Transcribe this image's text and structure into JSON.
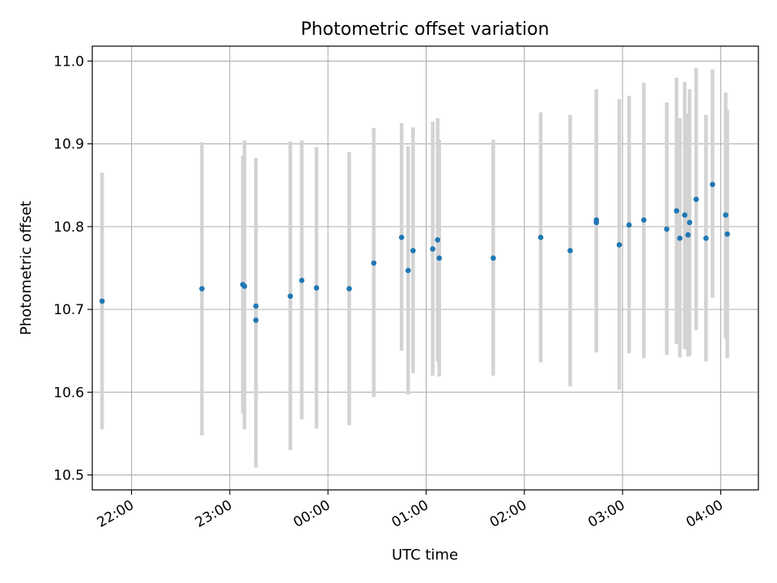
{
  "chart_data": {
    "type": "scatter",
    "title": "Photometric offset variation",
    "xlabel": "UTC time",
    "ylabel": "Photometric offset",
    "x_axis": {
      "type": "time",
      "min": "21:36",
      "max": "04:23"
    },
    "ylim": [
      10.482,
      11.018
    ],
    "grid": true,
    "colors": {
      "points": "#1f77b4",
      "errorbars": "#d3d3d3",
      "grid": "#b0b0b0"
    },
    "x_ticks": [
      "22:00",
      "23:00",
      "00:00",
      "01:00",
      "02:00",
      "03:00",
      "04:00"
    ],
    "y_ticks": [
      "10.5",
      "10.6",
      "10.7",
      "10.8",
      "10.9",
      "11.0"
    ],
    "points": [
      {
        "x": "21:42",
        "y": 10.71,
        "yerr_low": 10.555,
        "yerr_high": 10.865
      },
      {
        "x": "22:43",
        "y": 10.725,
        "yerr_low": 10.548,
        "yerr_high": 10.902
      },
      {
        "x": "23:08",
        "y": 10.73,
        "yerr_low": 10.574,
        "yerr_high": 10.886
      },
      {
        "x": "23:09",
        "y": 10.728,
        "yerr_low": 10.555,
        "yerr_high": 10.904
      },
      {
        "x": "23:16",
        "y": 10.687,
        "yerr_low": 10.509,
        "yerr_high": 10.865
      },
      {
        "x": "23:16",
        "y": 10.704,
        "yerr_low": 10.525,
        "yerr_high": 10.883
      },
      {
        "x": "23:37",
        "y": 10.716,
        "yerr_low": 10.53,
        "yerr_high": 10.903
      },
      {
        "x": "23:44",
        "y": 10.735,
        "yerr_low": 10.567,
        "yerr_high": 10.904
      },
      {
        "x": "23:53",
        "y": 10.726,
        "yerr_low": 10.556,
        "yerr_high": 10.896
      },
      {
        "x": "00:13",
        "y": 10.725,
        "yerr_low": 10.56,
        "yerr_high": 10.89
      },
      {
        "x": "00:28",
        "y": 10.756,
        "yerr_low": 10.594,
        "yerr_high": 10.919
      },
      {
        "x": "00:45",
        "y": 10.787,
        "yerr_low": 10.65,
        "yerr_high": 10.925
      },
      {
        "x": "00:49",
        "y": 10.747,
        "yerr_low": 10.597,
        "yerr_high": 10.897
      },
      {
        "x": "00:52",
        "y": 10.771,
        "yerr_low": 10.623,
        "yerr_high": 10.92
      },
      {
        "x": "01:04",
        "y": 10.773,
        "yerr_low": 10.62,
        "yerr_high": 10.927
      },
      {
        "x": "01:07",
        "y": 10.784,
        "yerr_low": 10.637,
        "yerr_high": 10.931
      },
      {
        "x": "01:08",
        "y": 10.762,
        "yerr_low": 10.619,
        "yerr_high": 10.905
      },
      {
        "x": "01:41",
        "y": 10.762,
        "yerr_low": 10.62,
        "yerr_high": 10.905
      },
      {
        "x": "02:10",
        "y": 10.787,
        "yerr_low": 10.636,
        "yerr_high": 10.938
      },
      {
        "x": "02:28",
        "y": 10.771,
        "yerr_low": 10.607,
        "yerr_high": 10.935
      },
      {
        "x": "02:44",
        "y": 10.805,
        "yerr_low": 10.648,
        "yerr_high": 10.962
      },
      {
        "x": "02:44",
        "y": 10.808,
        "yerr_low": 10.65,
        "yerr_high": 10.966
      },
      {
        "x": "02:58",
        "y": 10.778,
        "yerr_low": 10.603,
        "yerr_high": 10.954
      },
      {
        "x": "03:04",
        "y": 10.802,
        "yerr_low": 10.647,
        "yerr_high": 10.958
      },
      {
        "x": "03:13",
        "y": 10.808,
        "yerr_low": 10.641,
        "yerr_high": 10.974
      },
      {
        "x": "03:27",
        "y": 10.797,
        "yerr_low": 10.645,
        "yerr_high": 10.95
      },
      {
        "x": "03:33",
        "y": 10.819,
        "yerr_low": 10.658,
        "yerr_high": 10.98
      },
      {
        "x": "03:35",
        "y": 10.786,
        "yerr_low": 10.642,
        "yerr_high": 10.931
      },
      {
        "x": "03:38",
        "y": 10.814,
        "yerr_low": 10.652,
        "yerr_high": 10.975
      },
      {
        "x": "03:40",
        "y": 10.79,
        "yerr_low": 10.643,
        "yerr_high": 10.937
      },
      {
        "x": "03:41",
        "y": 10.805,
        "yerr_low": 10.644,
        "yerr_high": 10.966
      },
      {
        "x": "03:45",
        "y": 10.833,
        "yerr_low": 10.675,
        "yerr_high": 10.992
      },
      {
        "x": "03:51",
        "y": 10.786,
        "yerr_low": 10.637,
        "yerr_high": 10.935
      },
      {
        "x": "03:55",
        "y": 10.851,
        "yerr_low": 10.714,
        "yerr_high": 10.99
      },
      {
        "x": "04:03",
        "y": 10.814,
        "yerr_low": 10.665,
        "yerr_high": 10.962
      },
      {
        "x": "04:04",
        "y": 10.791,
        "yerr_low": 10.641,
        "yerr_high": 10.941
      }
    ]
  }
}
